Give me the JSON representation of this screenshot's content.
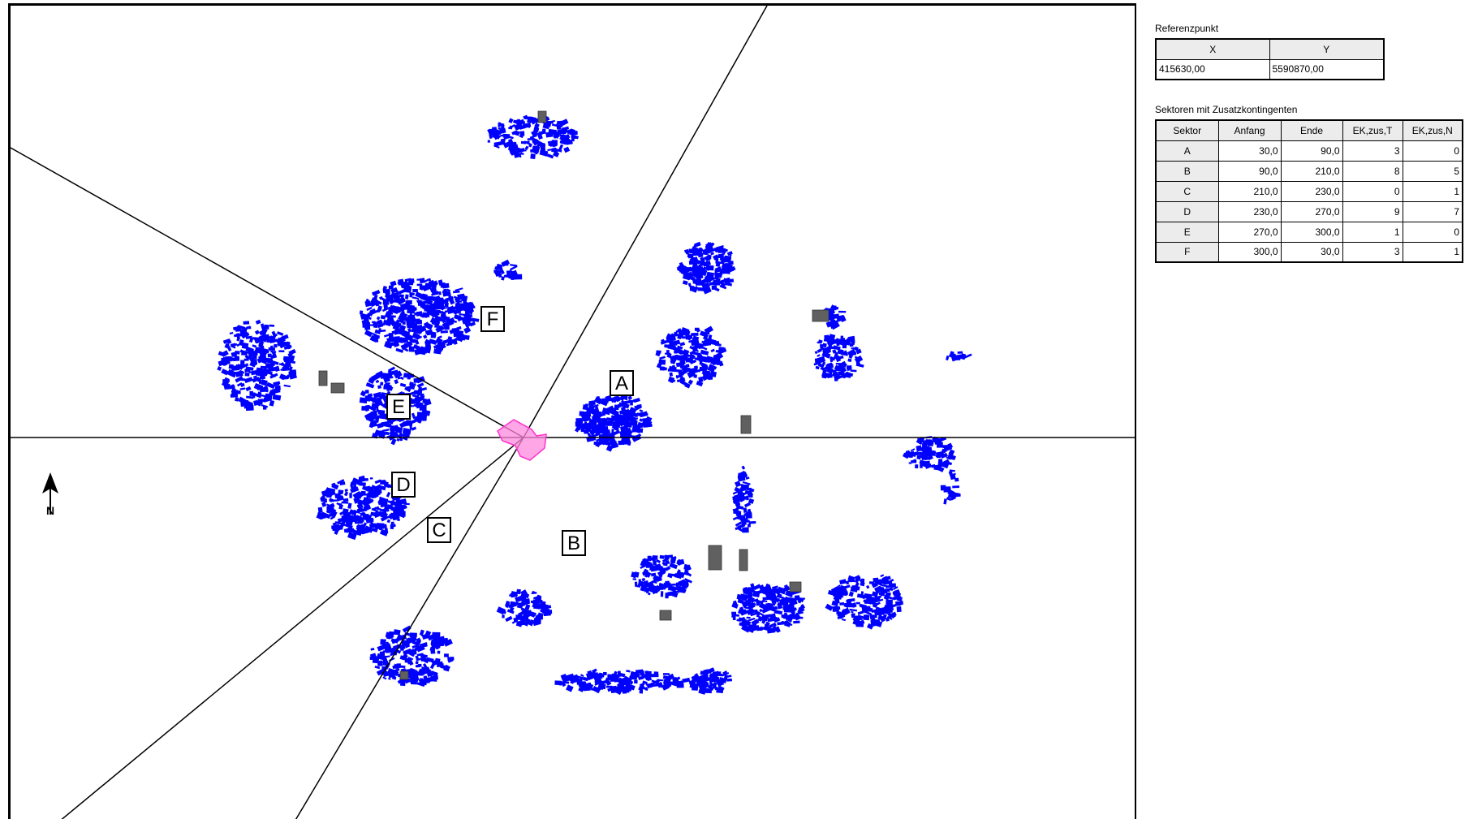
{
  "map": {
    "sector_labels": [
      "A",
      "B",
      "C",
      "D",
      "E",
      "F"
    ],
    "colors": {
      "buildings": "#0000ff",
      "industrial": "#606060",
      "reference_site": "#ff66cc",
      "lines": "#000000"
    },
    "north_arrow_icon": "north-arrow-icon",
    "north_arrow_letter": "N"
  },
  "reference_point": {
    "caption": "Referenzpunkt",
    "headers": [
      "X",
      "Y"
    ],
    "values": [
      "415630,00",
      "5590870,00"
    ]
  },
  "sectors": {
    "caption": "Sektoren mit Zusatzkontingenten",
    "headers": [
      "Sektor",
      "Anfang",
      "Ende",
      "EK,zus,T",
      "EK,zus,N"
    ],
    "rows": [
      [
        "A",
        "30,0",
        "90,0",
        "3",
        "0"
      ],
      [
        "B",
        "90,0",
        "210,0",
        "8",
        "5"
      ],
      [
        "C",
        "210,0",
        "230,0",
        "0",
        "1"
      ],
      [
        "D",
        "230,0",
        "270,0",
        "9",
        "7"
      ],
      [
        "E",
        "270,0",
        "300,0",
        "1",
        "0"
      ],
      [
        "F",
        "300,0",
        "30,0",
        "3",
        "1"
      ]
    ]
  }
}
